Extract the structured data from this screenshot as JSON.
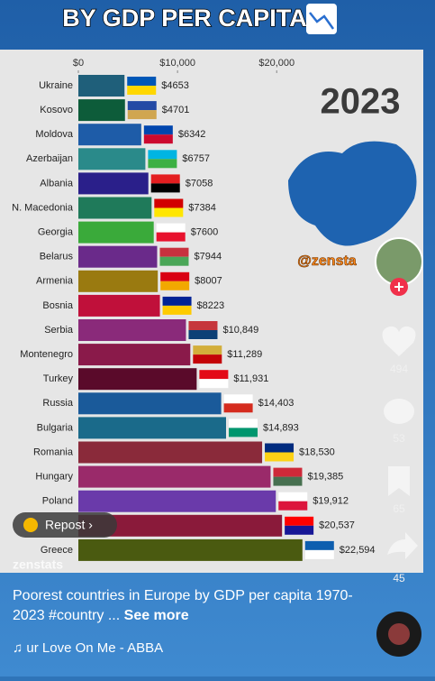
{
  "chart_data": {
    "type": "bar",
    "orientation": "horizontal",
    "title": "BY GDP PER CAPITA",
    "annotation": "2023",
    "watermark": "@zensta",
    "categories": [
      "Ukraine",
      "Kosovo",
      "Moldova",
      "Azerbaijan",
      "Albania",
      "N. Macedonia",
      "Georgia",
      "Belarus",
      "Armenia",
      "Bosnia",
      "Serbia",
      "Montenegro",
      "Turkey",
      "Russia",
      "Bulgaria",
      "Romania",
      "Hungary",
      "Poland",
      null,
      "Greece"
    ],
    "values": [
      4653,
      4701,
      6342,
      6757,
      7058,
      7384,
      7600,
      7944,
      8007,
      8223,
      10849,
      11289,
      11931,
      14403,
      14893,
      18530,
      19385,
      19912,
      20537,
      22594
    ],
    "value_labels": [
      "$4653",
      "$4701",
      "$6342",
      "$6757",
      "$7058",
      "$7384",
      "$7600",
      "$7944",
      "$8007",
      "$8223",
      "$10,849",
      "$11,289",
      "$11,931",
      "$14,403",
      "$14,893",
      "$18,530",
      "$19,385",
      "$19,912",
      "$20,537",
      "$22,594"
    ],
    "colors": [
      "#1f5f7a",
      "#0d5c3a",
      "#1e5ca8",
      "#2a8a8a",
      "#2a1f8a",
      "#1f7a5a",
      "#3aaa3a",
      "#6a2a8a",
      "#9a7a10",
      "#c0103a",
      "#8a2a7a",
      "#8a1a4a",
      "#5a0a2a",
      "#1a5a9a",
      "#1a6a8a",
      "#8a2a3a",
      "#9a2a6a",
      "#6a3aaa",
      "#8a1a3a",
      "#4a5a10"
    ],
    "xlim": [
      0,
      34600
    ],
    "xticks": [
      {
        "value": 0,
        "label": "$0"
      },
      {
        "value": 10000,
        "label": "$10,000"
      },
      {
        "value": 20000,
        "label": "$20,000"
      }
    ]
  },
  "ui": {
    "likes": "494",
    "comments": "53",
    "saves": "65",
    "shares": "45",
    "repost": "Repost ›",
    "account": "zenstats",
    "caption": "Poorest countries in Europe by GDP per capita 1970-2023 #country ...",
    "see_more": "See more",
    "music": "♫ ur Love On Me - ABBA"
  }
}
